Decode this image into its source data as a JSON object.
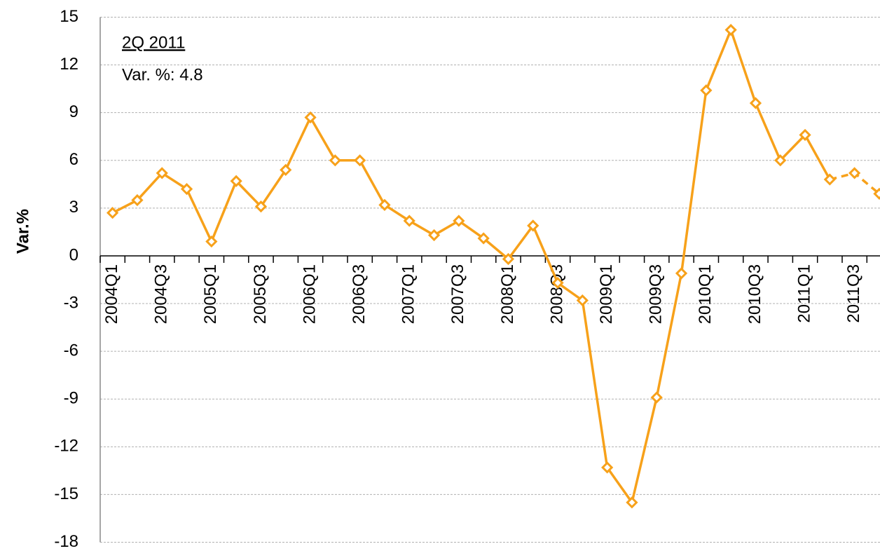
{
  "chart_data": {
    "type": "line",
    "y_label": "Var.%",
    "annotation": {
      "title": "2Q 2011",
      "text": "Var. %: 4.8"
    },
    "categories": [
      "2004Q1",
      null,
      "2004Q3",
      null,
      "2005Q1",
      null,
      "2005Q3",
      null,
      "2006Q1",
      null,
      "2006Q3",
      null,
      "2007Q1",
      null,
      "2007Q3",
      null,
      "2008Q1",
      null,
      "2008Q3",
      null,
      "2009Q1",
      null,
      "2009Q3",
      null,
      "2010Q1",
      null,
      "2010Q3",
      null,
      "2011Q1",
      null,
      "2011Q3",
      null
    ],
    "values": [
      2.7,
      3.5,
      5.2,
      4.2,
      0.9,
      4.7,
      3.1,
      5.4,
      8.7,
      6.0,
      6.0,
      3.2,
      2.2,
      1.3,
      2.2,
      1.1,
      -0.2,
      1.9,
      -1.7,
      -2.8,
      -13.3,
      -15.5,
      -8.9,
      -1.1,
      10.4,
      14.2,
      9.6,
      6.0,
      7.6,
      4.8,
      5.2,
      3.9
    ],
    "color": "#f7a11a",
    "dashed_from": 29,
    "ylim": [
      -18,
      15
    ],
    "yticks": [
      -18,
      -15,
      -12,
      -9,
      -6,
      -3,
      0,
      3,
      6,
      9,
      12,
      15
    ],
    "grid": true
  }
}
